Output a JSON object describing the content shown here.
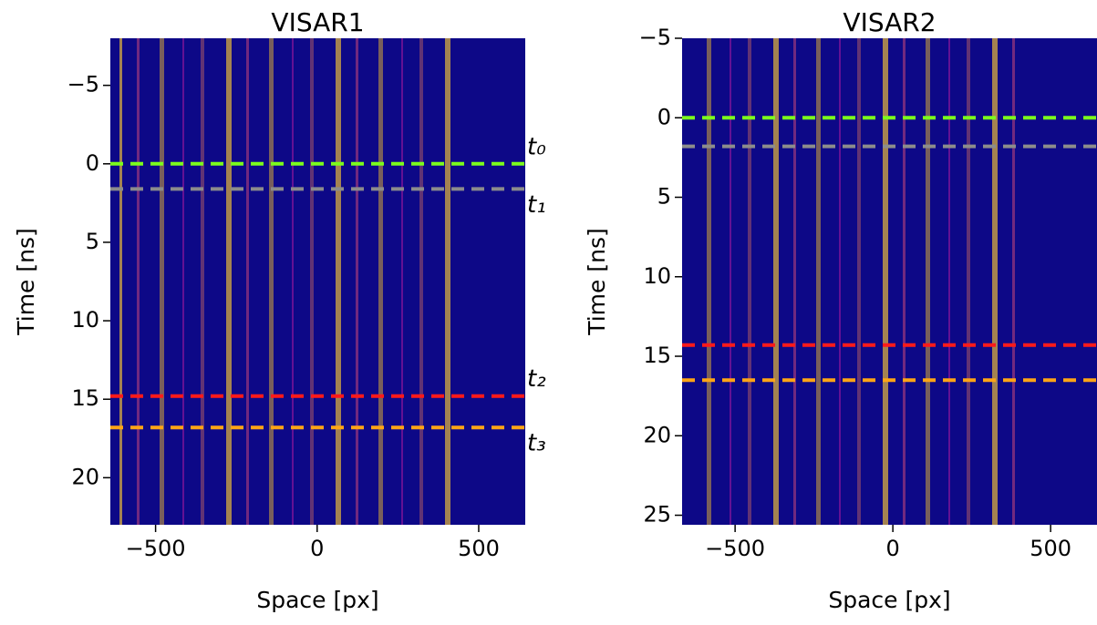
{
  "chart_data": [
    {
      "type": "heatmap",
      "title": "VISAR1",
      "xlabel": "Space [px]",
      "ylabel": "Time [ns]",
      "xlim": [
        -640,
        644
      ],
      "ylim": [
        -8,
        23
      ],
      "y_inverted": true,
      "xticks": [
        {
          "value": -500,
          "label": "−500"
        },
        0,
        500
      ],
      "yticks": [
        {
          "value": -5,
          "label": "−5"
        },
        0,
        5,
        10,
        15,
        20
      ],
      "background": "#0d0887",
      "hlines": [
        {
          "y": 0,
          "color": "#7cfc1c",
          "label": "t₀"
        },
        {
          "y": 1.6,
          "color": "#8c8c8c",
          "label": "t₁"
        },
        {
          "y": 14.8,
          "color": "#ff1a1a",
          "label": "t₂"
        },
        {
          "y": 16.8,
          "color": "#ffa516",
          "label": "t₃"
        }
      ]
    },
    {
      "type": "heatmap",
      "title": "VISAR2",
      "xlabel": "Space [px]",
      "ylabel": "Time [ns]",
      "xlim": [
        -668,
        647
      ],
      "ylim": [
        -5,
        25.6
      ],
      "y_inverted": true,
      "xticks": [
        {
          "value": -500,
          "label": "−500"
        },
        0,
        500
      ],
      "yticks": [
        {
          "value": -5,
          "label": "−5"
        },
        0,
        5,
        10,
        15,
        20,
        25
      ],
      "background": "#0d0887",
      "hlines": [
        {
          "y": 0,
          "color": "#7cfc1c"
        },
        {
          "y": 1.8,
          "color": "#8c8c8c"
        },
        {
          "y": 14.3,
          "color": "#ff1a1a"
        },
        {
          "y": 16.5,
          "color": "#ffa516"
        }
      ]
    }
  ]
}
